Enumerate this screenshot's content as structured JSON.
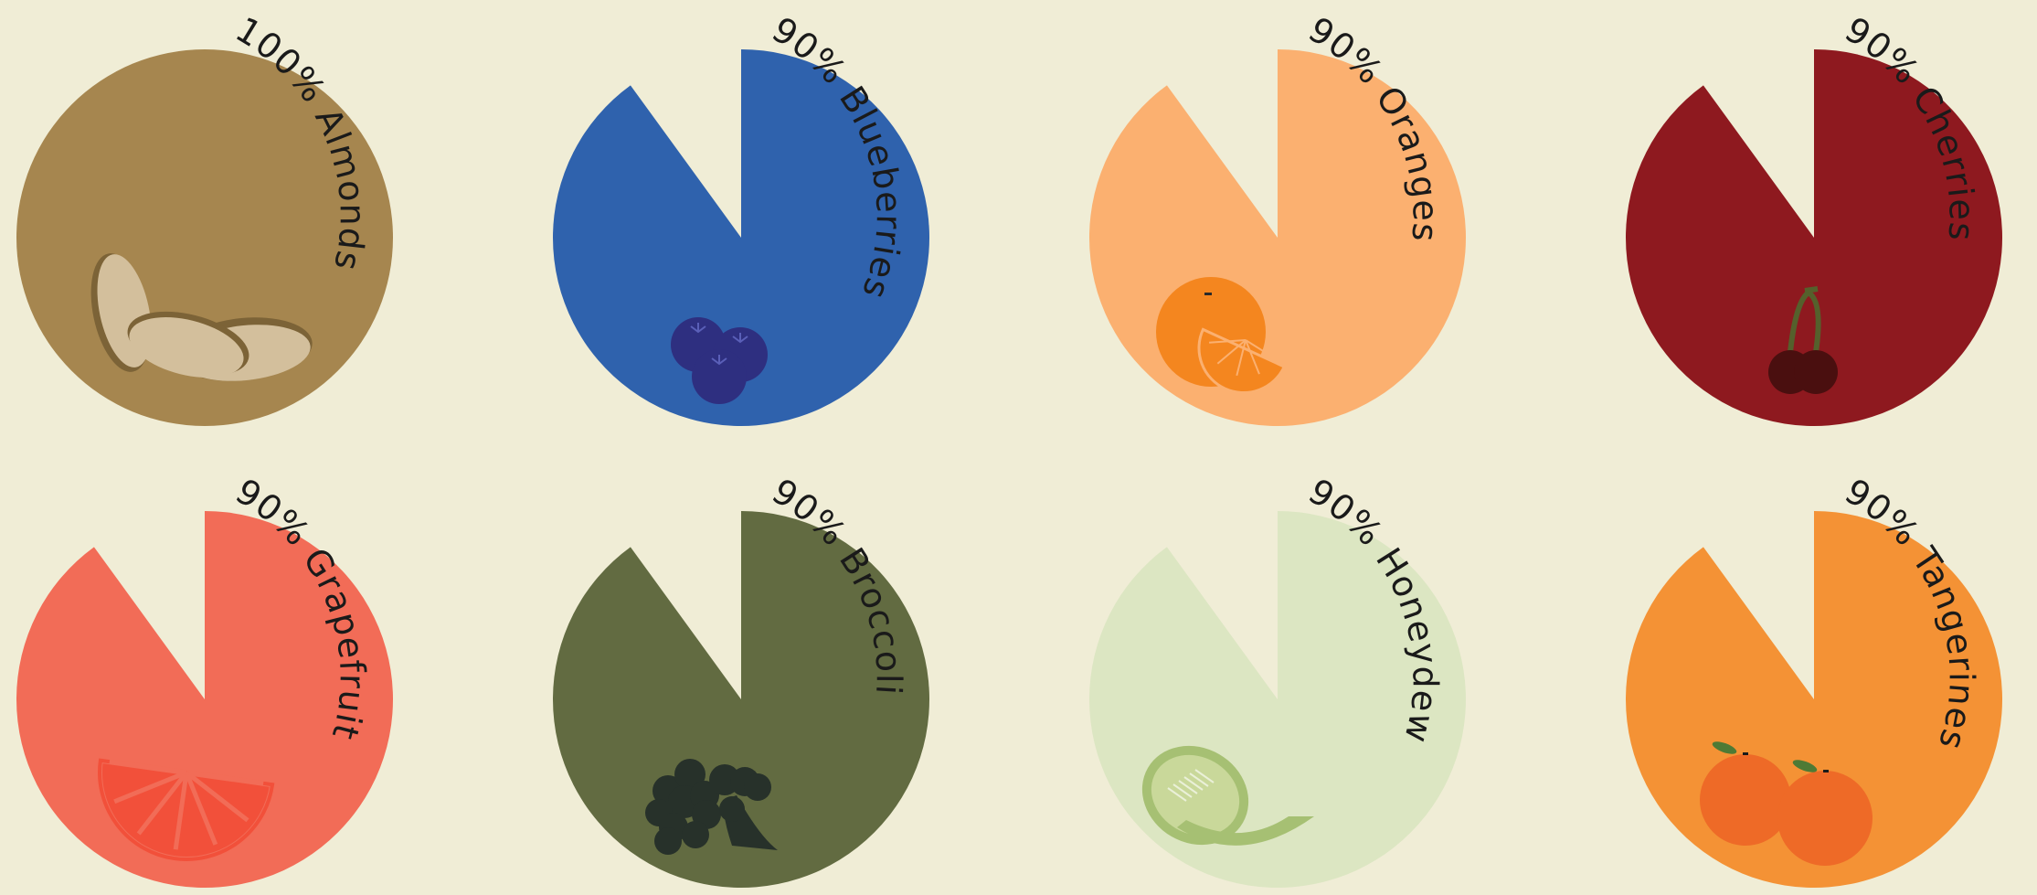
{
  "background": "#F0EDD6",
  "chart_data": {
    "type": "pie",
    "title": "",
    "items": [
      {
        "name": "Almonds",
        "value": 100,
        "label": "100% Almonds",
        "color": "#A6864F",
        "icon": "almond-icon"
      },
      {
        "name": "Blueberries",
        "value": 90,
        "label": "90% Blueberries",
        "color": "#2F62AD",
        "icon": "blueberry-icon"
      },
      {
        "name": "Oranges",
        "value": 90,
        "label": "90% Oranges",
        "color": "#FBB070",
        "icon": "orange-icon"
      },
      {
        "name": "Cherries",
        "value": 90,
        "label": "90% Cherries",
        "color": "#8E191F",
        "icon": "cherry-icon"
      },
      {
        "name": "Grapefruit",
        "value": 90,
        "label": "90% Grapefruit",
        "color": "#F26C57",
        "icon": "grapefruit-icon"
      },
      {
        "name": "Broccoli",
        "value": 90,
        "label": "90% Broccoli",
        "color": "#626B41",
        "icon": "broccoli-icon"
      },
      {
        "name": "Honeydew",
        "value": 90,
        "label": "90% Honeydew",
        "color": "#DCE6C2",
        "icon": "honeydew-icon"
      },
      {
        "name": "Tangerines",
        "value": 90,
        "label": "90% Tangerines",
        "color": "#F49235",
        "icon": "tangerine-icon"
      }
    ]
  }
}
